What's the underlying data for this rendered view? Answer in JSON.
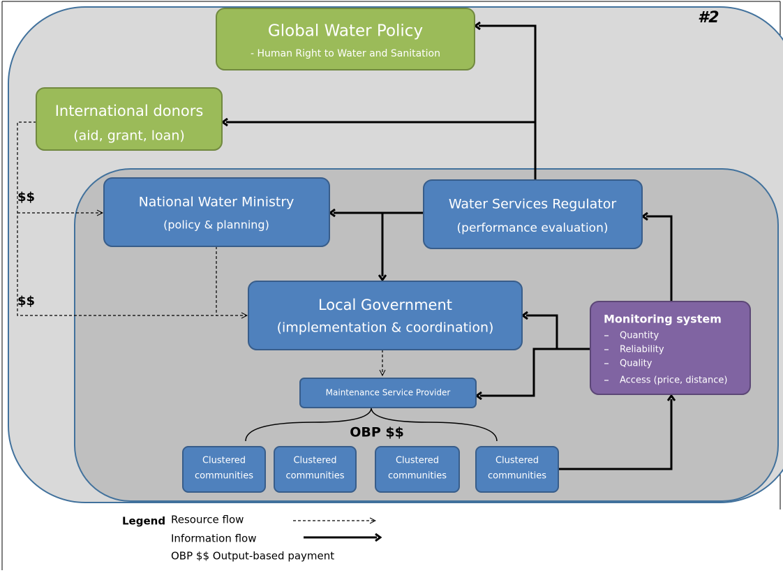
{
  "diagram_id": "#2",
  "nodes": [
    {
      "label": "Global Water Policy",
      "sub": "- Human Right to Water and Sanitation"
    },
    {
      "label": "International donors",
      "sub": "(aid, grant, loan)"
    },
    {
      "label": "National Water Ministry",
      "sub": "(policy & planning)"
    },
    {
      "label": "Water Services Regulator",
      "sub": "(performance evaluation)"
    },
    {
      "label": "Local Government",
      "sub": "(implementation & coordination)"
    },
    {
      "label": "Maintenance Service Provider"
    }
  ],
  "monitoring": {
    "title": "Monitoring system",
    "items": [
      "Quantity",
      "Reliability",
      "Quality",
      "Access (price, distance)"
    ]
  },
  "communities": [
    [
      "Clustered",
      "communities"
    ],
    [
      "Clustered",
      "communities"
    ],
    [
      "Clustered",
      "communities"
    ],
    [
      "Clustered",
      "communities"
    ]
  ],
  "money_labels": [
    "$$",
    "$$"
  ],
  "obp_label": "OBP $$",
  "legend": {
    "title": "Legend",
    "items": [
      "Resource flow",
      "Information flow",
      "OBP $$ Output-based payment"
    ]
  }
}
